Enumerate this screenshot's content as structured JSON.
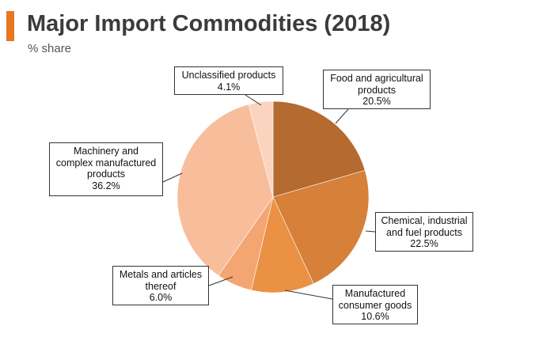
{
  "header": {
    "title": "Major Import Commodities (2018)",
    "subtitle": "% share",
    "accent_color": "#E87722"
  },
  "chart_data": {
    "type": "pie",
    "title": "Major Import Commodities (2018)",
    "subtitle": "% share",
    "start_angle_deg": 0,
    "direction": "clockwise",
    "slices": [
      {
        "label_lines": [
          "Food and agricultural",
          "products"
        ],
        "value": 20.5,
        "value_text": "20.5%",
        "color": "#B56A30"
      },
      {
        "label_lines": [
          "Chemical, industrial",
          "and fuel products"
        ],
        "value": 22.5,
        "value_text": "22.5%",
        "color": "#D6803A"
      },
      {
        "label_lines": [
          "Manufactured",
          "consumer goods"
        ],
        "value": 10.6,
        "value_text": "10.6%",
        "color": "#EA9144"
      },
      {
        "label_lines": [
          "Metals and articles",
          "thereof"
        ],
        "value": 6.0,
        "value_text": "6.0%",
        "color": "#F4A672"
      },
      {
        "label_lines": [
          "Machinery and",
          "complex manufactured",
          "products"
        ],
        "value": 36.2,
        "value_text": "36.2%",
        "color": "#F8BE9C"
      },
      {
        "label_lines": [
          "Unclassified products"
        ],
        "value": 4.1,
        "value_text": "4.1%",
        "color": "#FBD4BF"
      }
    ]
  }
}
